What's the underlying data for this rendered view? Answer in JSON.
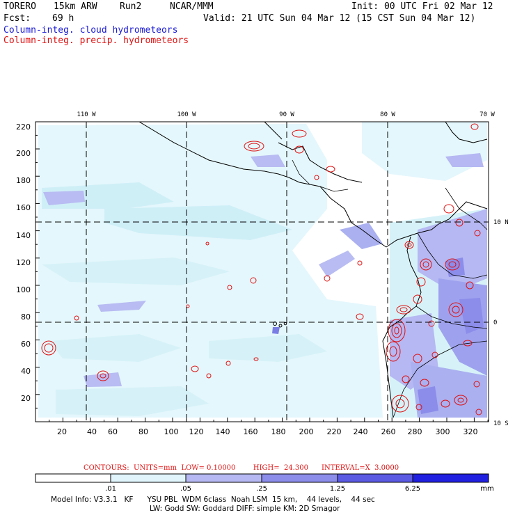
{
  "header": {
    "model": "TORERO",
    "resolution": "15km ARW",
    "run": "Run2",
    "org": "NCAR/MMM",
    "init": "Init: 00 UTC Fri 02 Mar 12",
    "fcst_label": "Fcst:",
    "fcst_value": "69 h",
    "valid": "Valid: 21 UTC Sun 04 Mar 12 (15 CST Sun 04 Mar 12)"
  },
  "fields": {
    "cloud": "Column-integ. cloud hydrometeors",
    "precip": "Column-integ. precip. hydrometeors"
  },
  "map": {
    "lon_labels": [
      "110 W",
      "100 W",
      "90 W",
      "80 W",
      "70 W"
    ],
    "lat_labels": [
      "10 N",
      "0",
      "10 S"
    ],
    "y_ticks": [
      "220",
      "200",
      "180",
      "160",
      "140",
      "120",
      "100",
      "80",
      "60",
      "40",
      "20"
    ],
    "x_ticks": [
      "20",
      "40",
      "60",
      "80",
      "100",
      "120",
      "140",
      "160",
      "180",
      "200",
      "220",
      "240",
      "260",
      "280",
      "300",
      "320"
    ]
  },
  "contours": {
    "label": "CONTOURS:",
    "units": "UNITS=mm",
    "low": "LOW= 0.10000",
    "high": "HIGH=  24.300",
    "interval": "INTERVAL=X  3.0000"
  },
  "colorbar": {
    "labels": [
      ".01",
      ".05",
      ".25",
      "1.25",
      "6.25"
    ],
    "unit": "mm",
    "colors": [
      "#ffffff",
      "#e0f6fc",
      "#b8ebf4",
      "#b5b8f2",
      "#8c8cea",
      "#5a5ae2",
      "#2020e0"
    ]
  },
  "footer": {
    "line1": "Model Info: V3.3.1   KF      YSU PBL  WDM 6class  Noah LSM  15 km,    44 levels,    44 sec",
    "line2": "LW: Godd SW: Goddard DIFF: simple KM: 2D Smagor"
  }
}
